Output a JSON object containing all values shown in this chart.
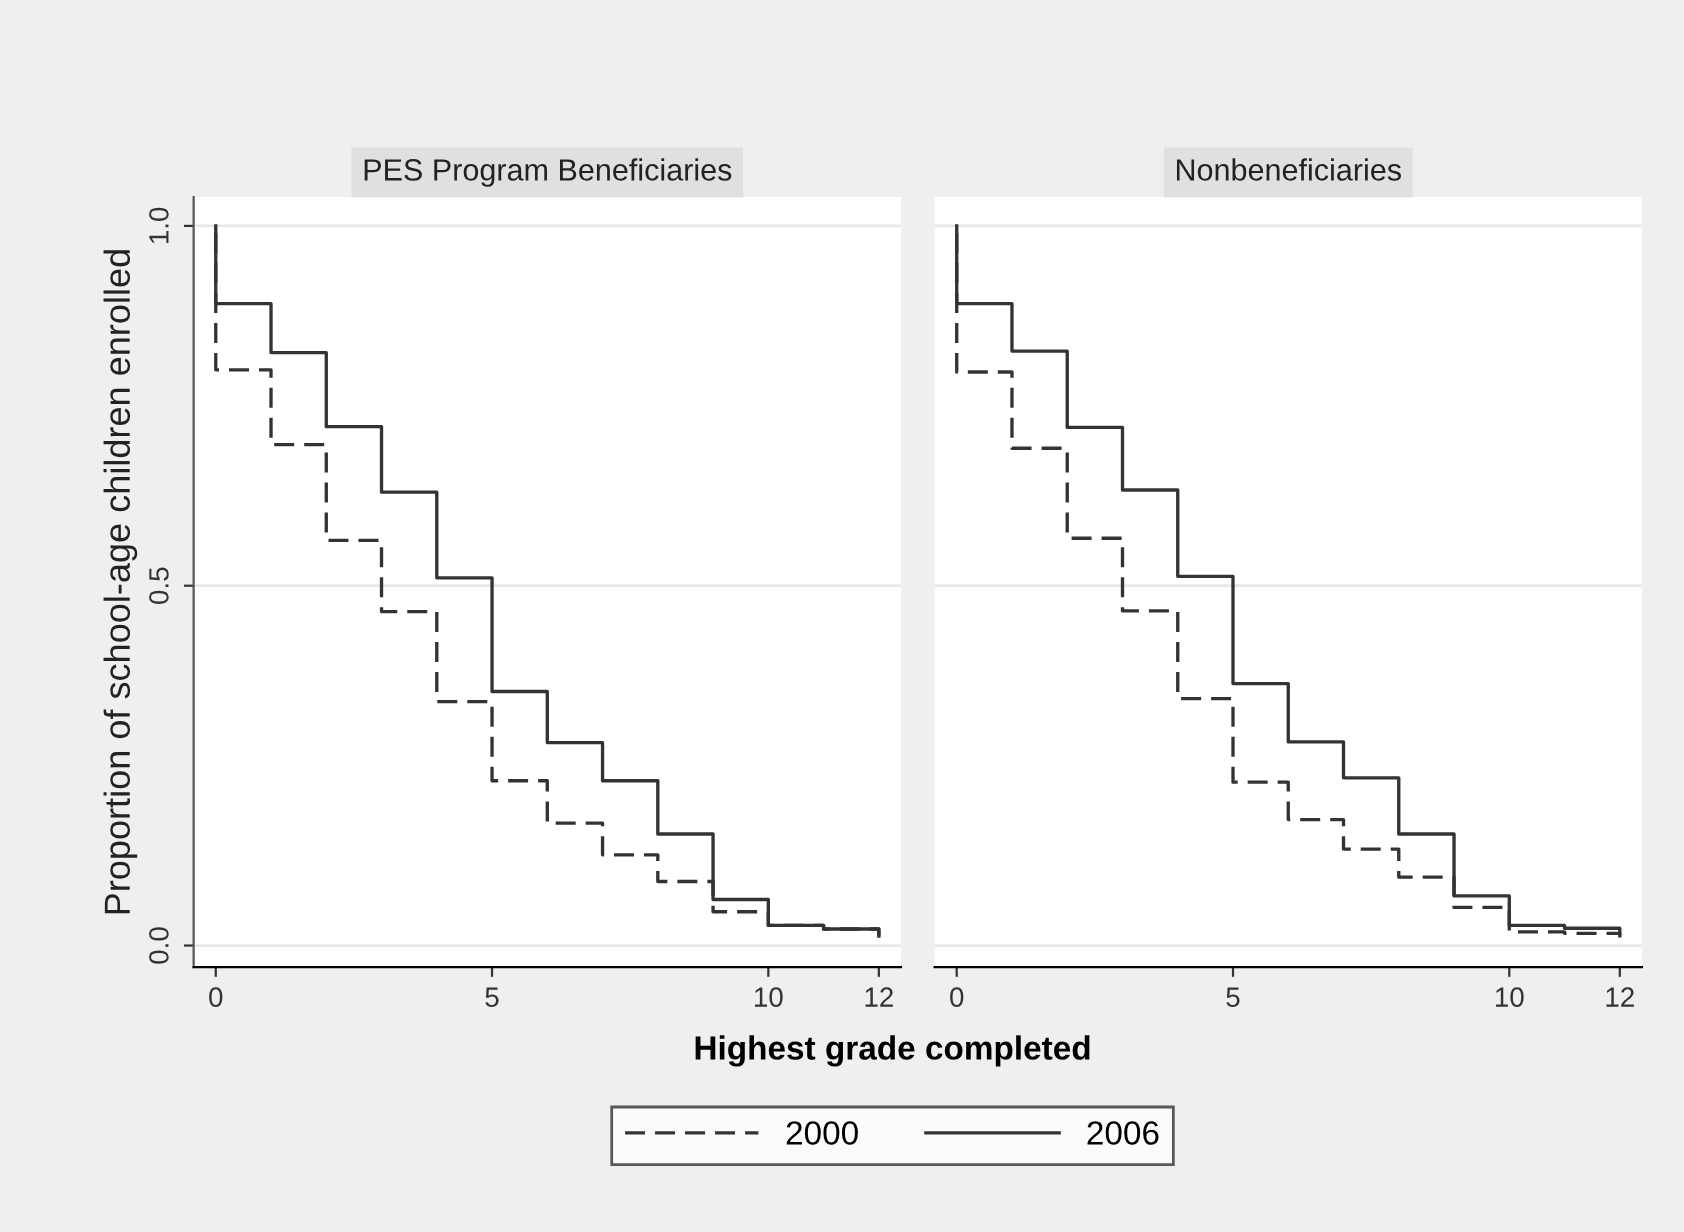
{
  "chart_data": [
    {
      "type": "step",
      "title": "PES Program Beneficiaries",
      "xlabel": "Highest grade completed",
      "ylabel": "Proportion of school-age children enrolled",
      "xlim": [
        -0.4,
        12.4
      ],
      "ylim": [
        -0.03,
        1.04
      ],
      "xticks": [
        0,
        5,
        10,
        12
      ],
      "yticks": [
        {
          "value": 0,
          "label": "0.0"
        },
        {
          "value": 0.5,
          "label": "0.5"
        },
        {
          "value": 1,
          "label": "1.0"
        }
      ],
      "grid": "y",
      "legend": "bottom",
      "series": [
        {
          "name": "2000",
          "color": "#333333",
          "line_style": "dashed",
          "x": [
            0,
            0,
            1,
            2,
            3,
            4,
            5,
            6,
            7,
            8,
            9,
            10,
            11,
            12
          ],
          "values": [
            0.99,
            0.8,
            0.696,
            0.563,
            0.464,
            0.339,
            0.229,
            0.17,
            0.126,
            0.089,
            0.047,
            0.028,
            0.023,
            0.013
          ]
        },
        {
          "name": "2006",
          "color": "#333333",
          "line_style": "solid",
          "x": [
            0,
            0,
            1,
            2,
            3,
            4,
            5,
            6,
            7,
            8,
            9,
            10,
            11,
            12
          ],
          "values": [
            1.0,
            0.892,
            0.824,
            0.721,
            0.63,
            0.511,
            0.353,
            0.282,
            0.229,
            0.155,
            0.064,
            0.028,
            0.023,
            0.013
          ]
        }
      ]
    },
    {
      "type": "step",
      "title": "Nonbeneficiaries",
      "xlim": [
        -0.4,
        12.4
      ],
      "ylim": [
        -0.03,
        1.04
      ],
      "xticks": [
        0,
        5,
        10,
        12
      ],
      "yticks": [
        0,
        0.5,
        1
      ],
      "grid": "y",
      "tick_labels": "x",
      "series": [
        {
          "color": "#333333",
          "line_style": "dashed",
          "x": [
            0,
            0,
            1,
            2,
            3,
            4,
            5,
            6,
            7,
            8,
            9,
            10,
            11,
            12
          ],
          "values": [
            0.99,
            0.797,
            0.691,
            0.566,
            0.465,
            0.343,
            0.227,
            0.175,
            0.134,
            0.095,
            0.053,
            0.019,
            0.017,
            0.011
          ]
        },
        {
          "color": "#333333",
          "line_style": "solid",
          "x": [
            0,
            0,
            1,
            2,
            3,
            4,
            5,
            6,
            7,
            8,
            9,
            10,
            11,
            12
          ],
          "values": [
            1.0,
            0.892,
            0.826,
            0.72,
            0.633,
            0.513,
            0.364,
            0.283,
            0.233,
            0.155,
            0.069,
            0.028,
            0.024,
            0.017
          ]
        }
      ]
    }
  ]
}
